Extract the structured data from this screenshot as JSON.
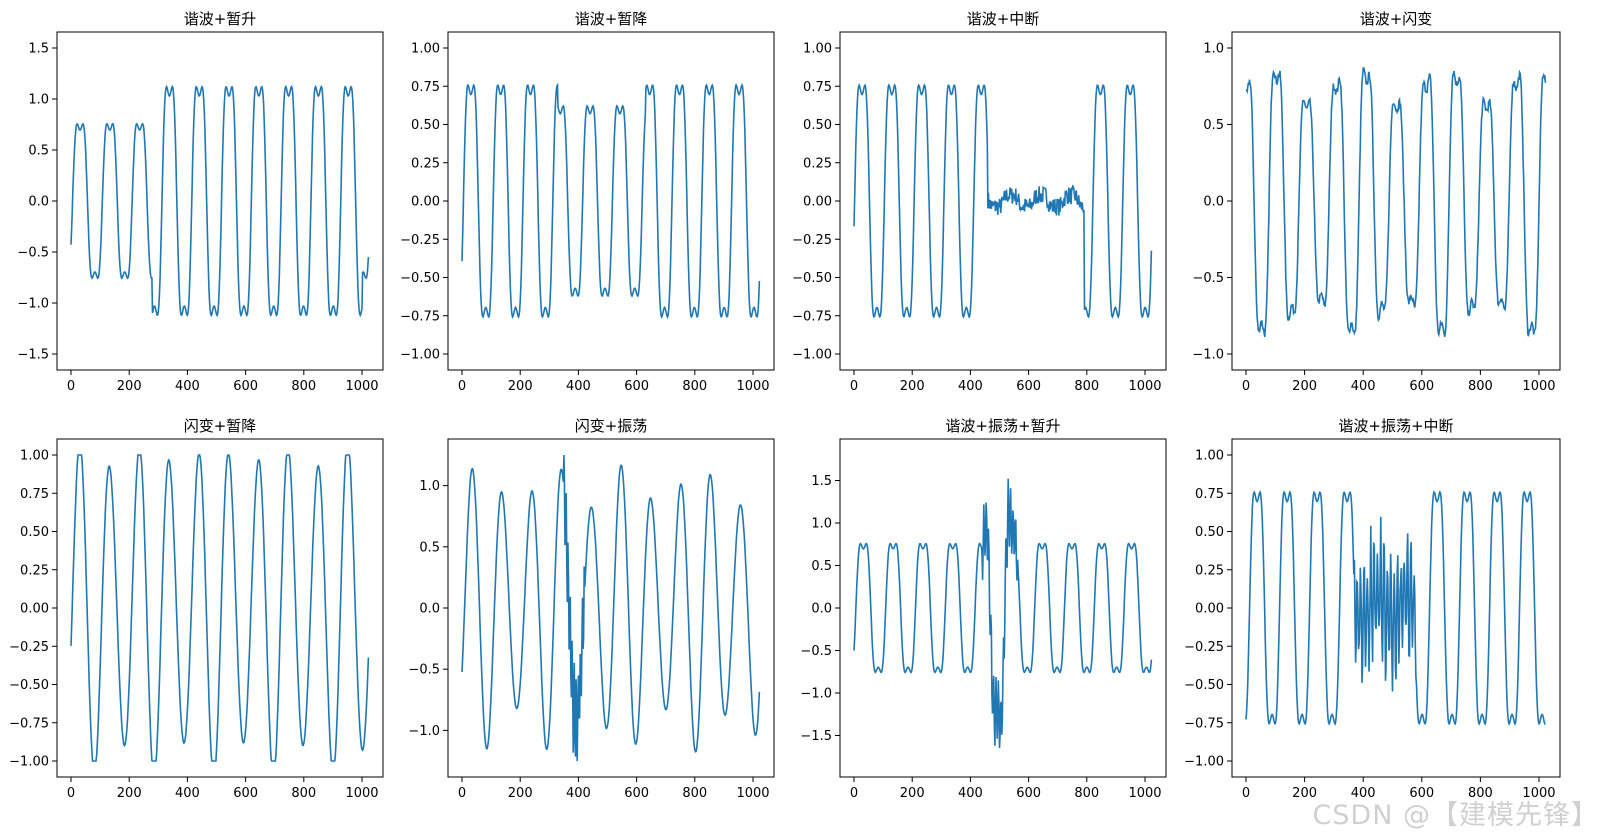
{
  "figure": {
    "line_color": "#1f77b4",
    "watermark": "CSDN @【建模先锋】"
  },
  "chart_data": [
    {
      "type": "line",
      "title": "谐波+暂升",
      "xlim": [
        0,
        1024
      ],
      "ylim": [
        -1.5,
        1.5
      ],
      "xticks": [
        0,
        200,
        400,
        600,
        800,
        1000
      ],
      "yticks": [
        -1.5,
        -1.0,
        -0.5,
        0.0,
        0.5,
        1.0,
        1.5
      ],
      "ytick_labels": [
        "−1.5",
        "−1.0",
        "−0.5",
        "0.0",
        "0.5",
        "1.0",
        "1.5"
      ],
      "signal": {
        "base": "sine_harmonic",
        "cycles": 10,
        "phase": -0.33,
        "harmonic3": 0.2,
        "disturb": "swell",
        "start": 280,
        "end": 1000,
        "factor": 1.48
      },
      "grid": false
    },
    {
      "type": "line",
      "title": "谐波+暂降",
      "xlim": [
        0,
        1024
      ],
      "ylim": [
        -1.0,
        1.0
      ],
      "xticks": [
        0,
        200,
        400,
        600,
        800,
        1000
      ],
      "yticks": [
        -1.0,
        -0.75,
        -0.5,
        -0.25,
        0.0,
        0.25,
        0.5,
        0.75,
        1.0
      ],
      "ytick_labels": [
        "−1.00",
        "−0.75",
        "−0.50",
        "−0.25",
        "0.00",
        "0.25",
        "0.50",
        "0.75",
        "1.00"
      ],
      "signal": {
        "base": "sine_harmonic",
        "cycles": 10,
        "phase": -0.3,
        "harmonic3": 0.2,
        "disturb": "sag",
        "start": 330,
        "end": 630,
        "factor": 0.82
      },
      "grid": false
    },
    {
      "type": "line",
      "title": "谐波+中断",
      "xlim": [
        0,
        1024
      ],
      "ylim": [
        -1.0,
        1.0
      ],
      "xticks": [
        0,
        200,
        400,
        600,
        800,
        1000
      ],
      "yticks": [
        -1.0,
        -0.75,
        -0.5,
        -0.25,
        0.0,
        0.25,
        0.5,
        0.75,
        1.0
      ],
      "ytick_labels": [
        "−1.00",
        "−0.75",
        "−0.50",
        "−0.25",
        "0.00",
        "0.25",
        "0.50",
        "0.75",
        "1.00"
      ],
      "signal": {
        "base": "sine_harmonic",
        "cycles": 10,
        "phase": -0.12,
        "harmonic3": 0.2,
        "disturb": "interrupt",
        "start": 460,
        "end": 790,
        "factor": 0.05
      },
      "grid": false
    },
    {
      "type": "line",
      "title": "谐波+闪变",
      "xlim": [
        0,
        1024
      ],
      "ylim": [
        -1.0,
        1.0
      ],
      "xticks": [
        0,
        200,
        400,
        600,
        800,
        1000
      ],
      "yticks": [
        -1.0,
        -0.5,
        0.0,
        0.5,
        1.0
      ],
      "ytick_labels": [
        "−1.0",
        "−0.5",
        "0.0",
        "0.5",
        "1.0"
      ],
      "signal": {
        "base": "sine_harmonic",
        "cycles": 10,
        "phase": 1.45,
        "harmonic3": 0.2,
        "disturb": "flicker",
        "flicker_amp": 0.15,
        "flicker_cycles": 3.4
      },
      "grid": false
    },
    {
      "type": "line",
      "title": "闪变+暂降",
      "xlim": [
        0,
        1024
      ],
      "ylim": [
        -1.0,
        1.0
      ],
      "xticks": [
        0,
        200,
        400,
        600,
        800,
        1000
      ],
      "yticks": [
        -1.0,
        -0.75,
        -0.5,
        -0.25,
        0.0,
        0.25,
        0.5,
        0.75,
        1.0
      ],
      "ytick_labels": [
        "−1.00",
        "−0.75",
        "−0.50",
        "−0.25",
        "0.00",
        "0.25",
        "0.50",
        "0.75",
        "1.00"
      ],
      "signal": {
        "base": "sine",
        "cycles": 10,
        "phase": -0.25,
        "harmonic3": 0.0,
        "disturb": "flicker_sag",
        "flicker_amp": 0.12,
        "flicker_cycles": 4.7,
        "start": 300,
        "end": 650,
        "factor": 0.85
      },
      "grid": false
    },
    {
      "type": "line",
      "title": "闪变+振荡",
      "xlim": [
        0,
        1024
      ],
      "ylim": [
        -1.25,
        1.25
      ],
      "xticks": [
        0,
        200,
        400,
        600,
        800,
        1000
      ],
      "yticks": [
        -1.0,
        -0.5,
        0.0,
        0.5,
        1.0
      ],
      "ytick_labels": [
        "−1.0",
        "−0.5",
        "0.0",
        "0.5",
        "1.0"
      ],
      "signal": {
        "base": "sine",
        "cycles": 10,
        "phase": -0.55,
        "harmonic3": 0.0,
        "disturb": "flicker_osc",
        "flicker_amp": 0.18,
        "flicker_cycles": 4.1,
        "start": 350,
        "end": 420,
        "osc_amp": 0.45,
        "osc_freq": 0.9
      },
      "grid": false
    },
    {
      "type": "line",
      "title": "谐波+振荡+暂升",
      "xlim": [
        0,
        1024
      ],
      "ylim": [
        -1.8,
        1.8
      ],
      "xticks": [
        0,
        200,
        400,
        600,
        800,
        1000
      ],
      "yticks": [
        -1.5,
        -1.0,
        -0.5,
        0.0,
        0.5,
        1.0,
        1.5
      ],
      "ytick_labels": [
        "−1.5",
        "−1.0",
        "−0.5",
        "0.0",
        "0.5",
        "1.0",
        "1.5"
      ],
      "signal": {
        "base": "sine_harmonic",
        "cycles": 10,
        "phase": -0.4,
        "harmonic3": 0.2,
        "disturb": "osc_swell",
        "start": 440,
        "end": 560,
        "factor": 1.75,
        "osc_amp": 0.45,
        "osc_freq": 0.75
      },
      "grid": false
    },
    {
      "type": "line",
      "title": "谐波+振荡+中断",
      "xlim": [
        0,
        1024
      ],
      "ylim": [
        -1.0,
        1.0
      ],
      "xticks": [
        0,
        200,
        400,
        600,
        800,
        1000
      ],
      "yticks": [
        -1.0,
        -0.75,
        -0.5,
        -0.25,
        0.0,
        0.25,
        0.5,
        0.75,
        1.0
      ],
      "ytick_labels": [
        "−1.00",
        "−0.75",
        "−0.50",
        "−0.25",
        "0.00",
        "0.25",
        "0.50",
        "0.75",
        "1.00"
      ],
      "signal": {
        "base": "sine_harmonic",
        "cycles": 10,
        "phase": -0.75,
        "harmonic3": 0.2,
        "disturb": "osc_interrupt",
        "start": 370,
        "end": 580,
        "factor": 0.08,
        "osc_amp": 0.55,
        "osc_freq": 0.55
      },
      "grid": false
    }
  ]
}
